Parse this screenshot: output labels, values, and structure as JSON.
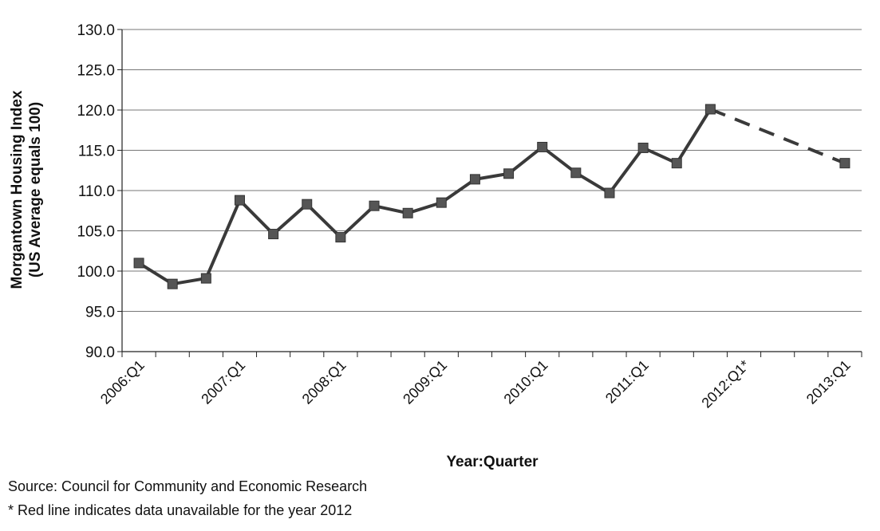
{
  "chart_data": {
    "type": "line",
    "xlabel": "Year:Quarter",
    "ylabel": [
      "Morgantown Housing Index",
      "(US Average equals 100)"
    ],
    "ylim": [
      90,
      130
    ],
    "y_ticks": [
      "90.0",
      "95.0",
      "100.0",
      "105.0",
      "110.0",
      "115.0",
      "120.0",
      "125.0",
      "130.0"
    ],
    "x_tick_labels": [
      {
        "index": 0,
        "label": "2006:Q1"
      },
      {
        "index": 3,
        "label": "2007:Q1"
      },
      {
        "index": 6,
        "label": "2008:Q1"
      },
      {
        "index": 9,
        "label": "2009:Q1"
      },
      {
        "index": 12,
        "label": "2010:Q1"
      },
      {
        "index": 15,
        "label": "2011:Q1"
      },
      {
        "index": 18,
        "label": "2012:Q1*"
      },
      {
        "index": 21,
        "label": "2013:Q1"
      }
    ],
    "category_count": 22,
    "grid": true,
    "series": [
      {
        "style": "solid",
        "points": [
          {
            "x": 0,
            "y": 101.0
          },
          {
            "x": 1,
            "y": 98.4
          },
          {
            "x": 2,
            "y": 99.1
          },
          {
            "x": 3,
            "y": 108.8
          },
          {
            "x": 4,
            "y": 104.6
          },
          {
            "x": 5,
            "y": 108.3
          },
          {
            "x": 6,
            "y": 104.2
          },
          {
            "x": 7,
            "y": 108.1
          },
          {
            "x": 8,
            "y": 107.2
          },
          {
            "x": 9,
            "y": 108.5
          },
          {
            "x": 10,
            "y": 111.4
          },
          {
            "x": 11,
            "y": 112.1
          },
          {
            "x": 12,
            "y": 115.4
          },
          {
            "x": 13,
            "y": 112.2
          },
          {
            "x": 14,
            "y": 109.7
          },
          {
            "x": 15,
            "y": 115.3
          },
          {
            "x": 16,
            "y": 113.4
          },
          {
            "x": 17,
            "y": 120.1
          },
          {
            "x": 21,
            "y": 113.4
          }
        ]
      },
      {
        "style": "dashed",
        "points": [
          {
            "x": 17,
            "y": 120.1
          },
          {
            "x": 21,
            "y": 113.4
          }
        ]
      }
    ]
  },
  "footnotes": {
    "source": "Source: Council for Community and Economic Research",
    "note": "* Red line indicates  data unavailable for the year 2012"
  },
  "colors": {
    "line": "#3a3a3a",
    "marker": "#555555",
    "grid": "#777777"
  }
}
